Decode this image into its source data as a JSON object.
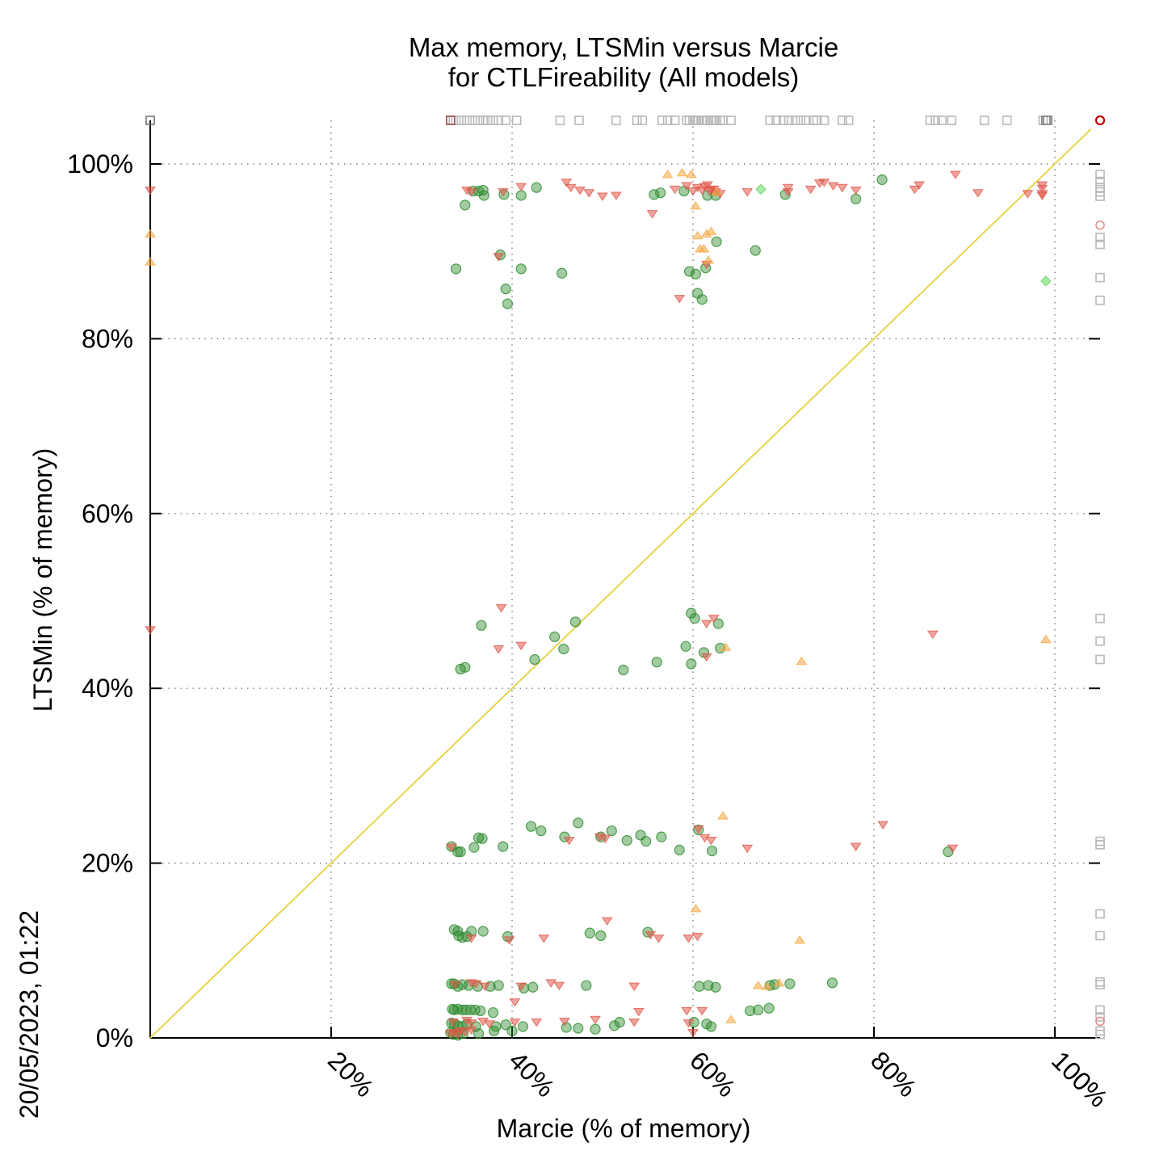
{
  "chart_data": {
    "type": "scatter",
    "title": "Max memory, LTSMin versus Marcie",
    "subtitle": "for CTLFireability (All models)",
    "xlabel": "Marcie (% of memory)",
    "ylabel": "LTSMin (% of memory)",
    "timestamp": "20/05/2023, 01:22",
    "xlim": [
      0,
      105
    ],
    "ylim": [
      0,
      100
    ],
    "x_ticks": [
      "20%",
      "40%",
      "60%",
      "80%",
      "100%"
    ],
    "x_tick_values": [
      20,
      40,
      60,
      80,
      100
    ],
    "y_ticks": [
      "0%",
      "20%",
      "40%",
      "60%",
      "80%",
      "100%"
    ],
    "y_tick_values": [
      0,
      20,
      40,
      60,
      80,
      100
    ],
    "grid": true,
    "diagonal_color": "#e8d44d",
    "series": [
      {
        "marker": "circle",
        "color": "#2e8b2e",
        "points": [
          [
            33.8,
            88.0
          ],
          [
            34.8,
            95.3
          ],
          [
            35.7,
            96.9
          ],
          [
            36.3,
            96.9
          ],
          [
            36.8,
            97.0
          ],
          [
            36.9,
            96.4
          ],
          [
            38.7,
            89.6
          ],
          [
            39.1,
            96.5
          ],
          [
            39.3,
            85.7
          ],
          [
            39.5,
            84.0
          ],
          [
            41.0,
            96.4
          ],
          [
            41.0,
            88.0
          ],
          [
            42.7,
            97.3
          ],
          [
            45.5,
            87.5
          ],
          [
            55.7,
            96.5
          ],
          [
            56.4,
            96.7
          ],
          [
            59.0,
            96.9
          ],
          [
            59.6,
            87.7
          ],
          [
            60.3,
            87.4
          ],
          [
            60.5,
            85.2
          ],
          [
            61.0,
            84.5
          ],
          [
            61.4,
            88.1
          ],
          [
            61.6,
            96.4
          ],
          [
            62.5,
            96.4
          ],
          [
            62.6,
            91.1
          ],
          [
            66.9,
            90.1
          ],
          [
            70.2,
            96.5
          ],
          [
            78.0,
            96.0
          ],
          [
            80.9,
            98.2
          ],
          [
            34.3,
            42.2
          ],
          [
            34.8,
            42.4
          ],
          [
            36.6,
            47.2
          ],
          [
            44.7,
            45.9
          ],
          [
            45.7,
            44.5
          ],
          [
            47.0,
            47.6
          ],
          [
            42.5,
            43.3
          ],
          [
            52.3,
            42.1
          ],
          [
            56.0,
            43.0
          ],
          [
            59.2,
            44.8
          ],
          [
            59.8,
            42.8
          ],
          [
            59.8,
            48.6
          ],
          [
            60.2,
            48.0
          ],
          [
            61.2,
            44.1
          ],
          [
            62.8,
            47.4
          ],
          [
            63.0,
            44.6
          ],
          [
            33.3,
            21.9
          ],
          [
            34.0,
            21.3
          ],
          [
            34.3,
            21.3
          ],
          [
            35.8,
            21.8
          ],
          [
            36.3,
            22.9
          ],
          [
            36.7,
            22.8
          ],
          [
            39.0,
            21.9
          ],
          [
            42.1,
            24.2
          ],
          [
            43.2,
            23.7
          ],
          [
            45.8,
            23.0
          ],
          [
            47.3,
            24.6
          ],
          [
            49.8,
            23.0
          ],
          [
            51.0,
            23.7
          ],
          [
            52.7,
            22.6
          ],
          [
            54.2,
            23.2
          ],
          [
            54.8,
            22.5
          ],
          [
            56.5,
            23.0
          ],
          [
            58.5,
            21.5
          ],
          [
            60.6,
            23.8
          ],
          [
            62.1,
            21.4
          ],
          [
            88.2,
            21.3
          ],
          [
            33.6,
            12.4
          ],
          [
            34.0,
            12.2
          ],
          [
            34.1,
            11.7
          ],
          [
            34.5,
            11.5
          ],
          [
            35.0,
            11.6
          ],
          [
            35.5,
            12.2
          ],
          [
            36.8,
            12.2
          ],
          [
            39.5,
            11.6
          ],
          [
            48.6,
            12.0
          ],
          [
            49.8,
            11.7
          ],
          [
            55.0,
            12.1
          ],
          [
            33.3,
            6.2
          ],
          [
            33.6,
            6.2
          ],
          [
            34.0,
            5.9
          ],
          [
            34.5,
            6.1
          ],
          [
            35.2,
            6.0
          ],
          [
            36.2,
            5.9
          ],
          [
            37.6,
            5.9
          ],
          [
            38.5,
            6.0
          ],
          [
            41.3,
            5.7
          ],
          [
            42.3,
            5.8
          ],
          [
            48.2,
            6.0
          ],
          [
            60.7,
            5.9
          ],
          [
            61.7,
            6.0
          ],
          [
            62.5,
            5.8
          ],
          [
            68.5,
            6.0
          ],
          [
            69.0,
            6.1
          ],
          [
            70.7,
            6.2
          ],
          [
            75.4,
            6.3
          ],
          [
            33.4,
            3.3
          ],
          [
            33.6,
            3.2
          ],
          [
            34.0,
            3.3
          ],
          [
            34.5,
            3.2
          ],
          [
            34.9,
            3.2
          ],
          [
            35.4,
            3.2
          ],
          [
            35.9,
            3.2
          ],
          [
            36.5,
            3.1
          ],
          [
            37.9,
            2.9
          ],
          [
            66.3,
            3.1
          ],
          [
            67.2,
            3.2
          ],
          [
            68.4,
            3.4
          ],
          [
            33.3,
            1.7
          ],
          [
            33.6,
            1.6
          ],
          [
            34.0,
            1.4
          ],
          [
            34.5,
            1.3
          ],
          [
            35.0,
            1.6
          ],
          [
            36.0,
            1.3
          ],
          [
            38.2,
            1.3
          ],
          [
            39.3,
            1.5
          ],
          [
            41.2,
            1.3
          ],
          [
            46.0,
            1.2
          ],
          [
            47.3,
            1.1
          ],
          [
            49.2,
            1.0
          ],
          [
            51.3,
            1.4
          ],
          [
            51.9,
            1.8
          ],
          [
            60.1,
            1.8
          ],
          [
            61.5,
            1.6
          ],
          [
            62.0,
            1.3
          ],
          [
            33.2,
            0.6
          ],
          [
            33.5,
            0.4
          ],
          [
            34.0,
            0.3
          ],
          [
            34.6,
            0.5
          ],
          [
            36.3,
            0.5
          ],
          [
            38.0,
            0.8
          ],
          [
            40.0,
            0.8
          ]
        ]
      },
      {
        "marker": "triangle-down",
        "color": "#e0574a",
        "points": [
          [
            0,
            97.0
          ],
          [
            0,
            46.7
          ],
          [
            35.0,
            97.0
          ],
          [
            35.5,
            96.8
          ],
          [
            39.0,
            96.8
          ],
          [
            41.0,
            97.4
          ],
          [
            46.0,
            97.9
          ],
          [
            46.5,
            97.3
          ],
          [
            47.5,
            97.0
          ],
          [
            48.5,
            96.7
          ],
          [
            50.0,
            96.3
          ],
          [
            51.5,
            96.4
          ],
          [
            55.5,
            94.3
          ],
          [
            58.0,
            97.1
          ],
          [
            59.3,
            97.5
          ],
          [
            60.0,
            96.9
          ],
          [
            60.5,
            97.3
          ],
          [
            61.0,
            97.0
          ],
          [
            61.3,
            97.4
          ],
          [
            61.6,
            97.6
          ],
          [
            62.0,
            97.1
          ],
          [
            62.5,
            96.8
          ],
          [
            63.0,
            96.6
          ],
          [
            66.0,
            96.8
          ],
          [
            70.5,
            97.3
          ],
          [
            70.5,
            96.8
          ],
          [
            73.0,
            97.1
          ],
          [
            74.0,
            97.8
          ],
          [
            74.5,
            97.9
          ],
          [
            75.5,
            97.5
          ],
          [
            76.5,
            97.3
          ],
          [
            78.0,
            97.0
          ],
          [
            84.5,
            97.1
          ],
          [
            85.0,
            97.6
          ],
          [
            89.0,
            98.8
          ],
          [
            91.5,
            96.7
          ],
          [
            97.0,
            96.6
          ],
          [
            98.6,
            96.6
          ],
          [
            98.6,
            97.6
          ],
          [
            98.6,
            96.4
          ],
          [
            98.6,
            97.2
          ],
          [
            38.5,
            89.4
          ],
          [
            58.5,
            84.6
          ],
          [
            61.5,
            88.5
          ],
          [
            61.8,
            96.9
          ],
          [
            62.3,
            97.1
          ],
          [
            38.8,
            49.2
          ],
          [
            38.5,
            44.5
          ],
          [
            41.0,
            44.9
          ],
          [
            61.5,
            43.6
          ],
          [
            61.5,
            47.4
          ],
          [
            62.3,
            48.0
          ],
          [
            86.5,
            46.2
          ],
          [
            33.3,
            21.8
          ],
          [
            46.3,
            22.6
          ],
          [
            49.7,
            23.0
          ],
          [
            50.3,
            22.8
          ],
          [
            60.6,
            23.9
          ],
          [
            61.3,
            22.9
          ],
          [
            62.0,
            22.6
          ],
          [
            66.0,
            21.7
          ],
          [
            78.0,
            21.9
          ],
          [
            81.0,
            24.4
          ],
          [
            88.7,
            21.7
          ],
          [
            35.5,
            11.4
          ],
          [
            39.7,
            11.2
          ],
          [
            43.5,
            11.4
          ],
          [
            50.5,
            13.4
          ],
          [
            55.3,
            11.8
          ],
          [
            56.2,
            11.4
          ],
          [
            59.5,
            11.4
          ],
          [
            60.5,
            11.6
          ],
          [
            33.7,
            6.1
          ],
          [
            35.5,
            6.3
          ],
          [
            36.0,
            6.2
          ],
          [
            37.0,
            5.9
          ],
          [
            41.0,
            5.9
          ],
          [
            44.3,
            6.3
          ],
          [
            45.2,
            6.0
          ],
          [
            53.5,
            5.9
          ],
          [
            40.3,
            4.1
          ],
          [
            54.0,
            3.0
          ],
          [
            59.3,
            3.1
          ],
          [
            61.0,
            3.1
          ],
          [
            33.5,
            1.8
          ],
          [
            35.0,
            2.0
          ],
          [
            35.5,
            1.7
          ],
          [
            36.8,
            1.9
          ],
          [
            37.5,
            1.6
          ],
          [
            40.3,
            1.8
          ],
          [
            42.7,
            1.8
          ],
          [
            45.8,
            1.9
          ],
          [
            49.2,
            2.1
          ],
          [
            53.5,
            1.8
          ],
          [
            59.5,
            1.7
          ],
          [
            33.2,
            0.5
          ],
          [
            33.6,
            0.6
          ],
          [
            34.0,
            0.4
          ],
          [
            34.3,
            0.8
          ],
          [
            34.8,
            0.7
          ],
          [
            35.5,
            0.9
          ],
          [
            60.0,
            0.6
          ]
        ]
      },
      {
        "marker": "triangle-up",
        "color": "#f5a742",
        "points": [
          [
            0,
            92.0
          ],
          [
            0,
            88.8
          ],
          [
            57.2,
            98.8
          ],
          [
            58.8,
            99.0
          ],
          [
            59.8,
            98.8
          ],
          [
            60.3,
            95.2
          ],
          [
            60.5,
            91.8
          ],
          [
            60.8,
            90.3
          ],
          [
            61.2,
            90.3
          ],
          [
            61.5,
            92.0
          ],
          [
            61.7,
            89.0
          ],
          [
            62.0,
            92.3
          ],
          [
            62.6,
            96.8
          ],
          [
            63.6,
            44.7
          ],
          [
            72.0,
            43.1
          ],
          [
            99.0,
            45.6
          ],
          [
            63.3,
            25.4
          ],
          [
            60.3,
            14.8
          ],
          [
            71.8,
            11.2
          ],
          [
            67.2,
            6.0
          ],
          [
            68.2,
            5.9
          ],
          [
            69.5,
            6.3
          ],
          [
            64.2,
            2.1
          ]
        ]
      },
      {
        "marker": "diamond",
        "color": "#5fd35f",
        "points": [
          [
            67.5,
            97.1
          ],
          [
            99.0,
            86.6
          ]
        ]
      }
    ]
  }
}
